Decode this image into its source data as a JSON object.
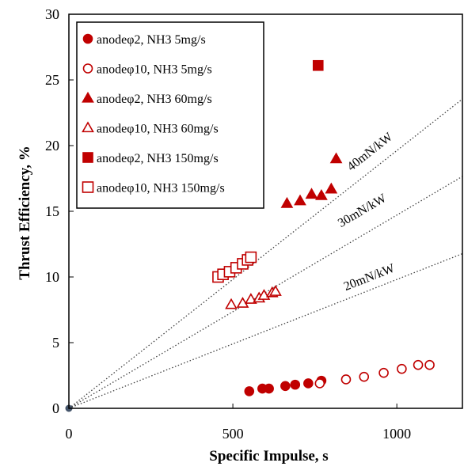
{
  "chart_data": {
    "type": "scatter",
    "xlabel": "Specific Impulse,  s",
    "ylabel": "Thrust  Efficiency, %",
    "xlim": [
      0,
      1200
    ],
    "ylim": [
      0,
      30
    ],
    "xticks": [
      0,
      500,
      1000
    ],
    "yticks": [
      0,
      5,
      10,
      15,
      20,
      25,
      30
    ],
    "grid": false,
    "legend_position": "top-left",
    "marker_color": "#c00000",
    "series": [
      {
        "name": "anodeφ2, NH3  5mg/s",
        "marker": "filled-circle",
        "x": [
          550,
          590,
          610,
          660,
          690,
          730,
          770
        ],
        "y": [
          1.3,
          1.5,
          1.5,
          1.7,
          1.8,
          1.9,
          2.1
        ]
      },
      {
        "name": "anodeφ10, NH3  5mg/s",
        "marker": "open-circle",
        "x": [
          765,
          845,
          900,
          960,
          1015,
          1065,
          1100
        ],
        "y": [
          1.9,
          2.2,
          2.4,
          2.7,
          3.0,
          3.3,
          3.3
        ]
      },
      {
        "name": "anodeφ2, NH3  60mg/s",
        "marker": "filled-triangle",
        "x": [
          665,
          705,
          740,
          770,
          800,
          815
        ],
        "y": [
          15.6,
          15.8,
          16.3,
          16.2,
          16.7,
          19.0
        ]
      },
      {
        "name": "anodeφ10, NH3  60mg/s",
        "marker": "open-triangle",
        "x": [
          495,
          530,
          555,
          580,
          595,
          620,
          630
        ],
        "y": [
          7.9,
          8.0,
          8.3,
          8.4,
          8.6,
          8.8,
          8.9
        ]
      },
      {
        "name": "anodeφ2, NH3  150mg/s",
        "marker": "filled-square",
        "x": [
          760
        ],
        "y": [
          26.1
        ]
      },
      {
        "name": "anodeφ10, NH3  150mg/s",
        "marker": "open-square",
        "x": [
          455,
          470,
          490,
          510,
          530,
          545,
          555
        ],
        "y": [
          10.0,
          10.2,
          10.4,
          10.7,
          11.0,
          11.3,
          11.5
        ]
      }
    ],
    "origin_point": {
      "x": 0,
      "y": 0,
      "color": "#44546a"
    },
    "reference_lines": [
      {
        "label": "40mN/kW",
        "slope_pct_per_s": 0.01962,
        "label_at": {
          "x": 925,
          "y": 19.3
        }
      },
      {
        "label": "30mN/kW",
        "slope_pct_per_s": 0.01471,
        "label_at": {
          "x": 900,
          "y": 14.8
        }
      },
      {
        "label": "20mN/kW",
        "slope_pct_per_s": 0.00981,
        "label_at": {
          "x": 920,
          "y": 9.7
        }
      }
    ]
  }
}
